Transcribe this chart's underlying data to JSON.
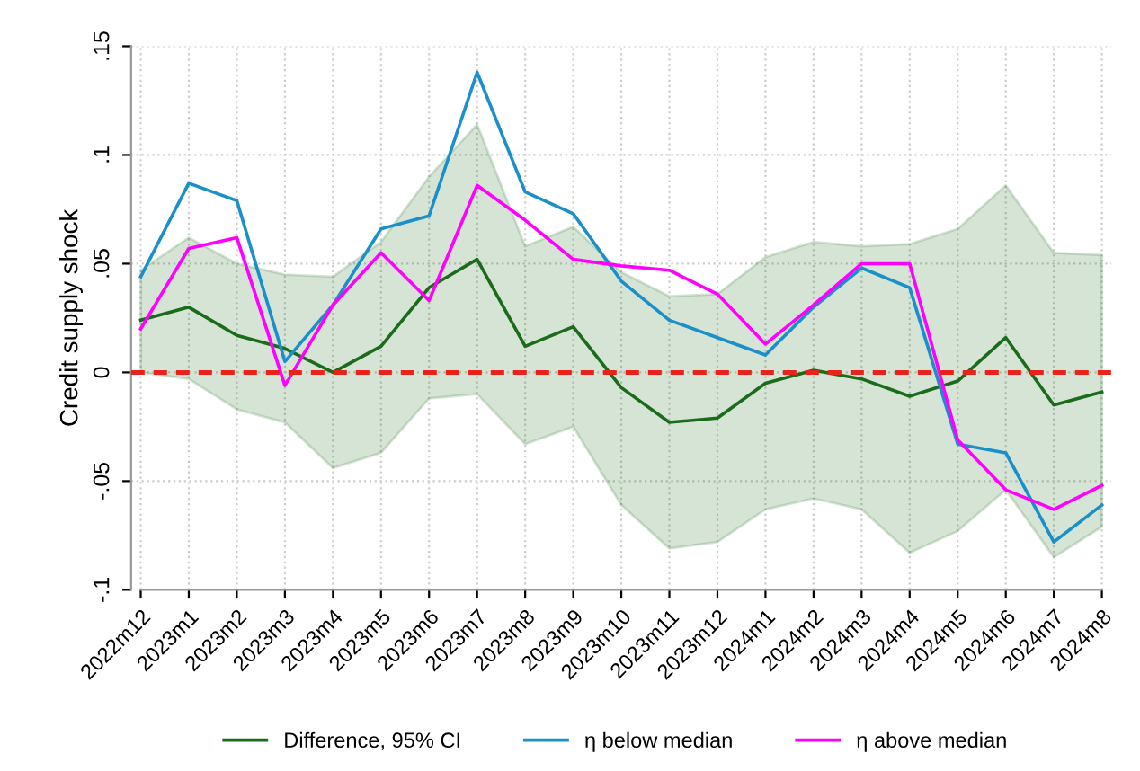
{
  "chart_data": {
    "type": "line",
    "ylabel": "Credit supply shock",
    "categories": [
      "2022m12",
      "2023m1",
      "2023m2",
      "2023m3",
      "2023m4",
      "2023m5",
      "2023m6",
      "2023m7",
      "2023m8",
      "2023m9",
      "2023m10",
      "2023m11",
      "2023m12",
      "2024m1",
      "2024m2",
      "2024m3",
      "2024m4",
      "2024m5",
      "2024m6",
      "2024m7",
      "2024m8"
    ],
    "series": [
      {
        "name": "Difference, 95% CI",
        "color": "#1a6b1a",
        "values": [
          0.024,
          0.03,
          0.017,
          0.011,
          0.0,
          0.012,
          0.039,
          0.052,
          0.012,
          0.021,
          -0.007,
          -0.023,
          -0.021,
          -0.005,
          0.001,
          -0.003,
          -0.011,
          -0.004,
          0.016,
          -0.015,
          -0.009
        ],
        "lower": [
          0.0,
          -0.003,
          -0.017,
          -0.023,
          -0.044,
          -0.037,
          -0.012,
          -0.01,
          -0.033,
          -0.025,
          -0.061,
          -0.081,
          -0.078,
          -0.063,
          -0.058,
          -0.063,
          -0.083,
          -0.073,
          -0.054,
          -0.085,
          -0.071
        ],
        "upper": [
          0.047,
          0.062,
          0.05,
          0.045,
          0.044,
          0.06,
          0.09,
          0.114,
          0.058,
          0.067,
          0.046,
          0.035,
          0.036,
          0.053,
          0.06,
          0.058,
          0.059,
          0.066,
          0.086,
          0.055,
          0.054
        ]
      },
      {
        "name": "η below median",
        "color": "#1a8fc9",
        "values": [
          0.044,
          0.087,
          0.079,
          0.005,
          0.031,
          0.066,
          0.072,
          0.138,
          0.083,
          0.073,
          0.042,
          0.024,
          0.016,
          0.008,
          0.03,
          0.048,
          0.039,
          -0.033,
          -0.037,
          -0.078,
          -0.061
        ]
      },
      {
        "name": "η above median",
        "color": "#ff00ff",
        "values": [
          0.02,
          0.057,
          0.062,
          -0.006,
          0.031,
          0.055,
          0.033,
          0.086,
          0.07,
          0.052,
          0.049,
          0.047,
          0.036,
          0.013,
          0.031,
          0.05,
          0.05,
          -0.031,
          -0.054,
          -0.063,
          -0.052
        ]
      }
    ],
    "ylim": [
      -0.1,
      0.15
    ],
    "yticks": [
      {
        "value": -0.1,
        "label": "-.1"
      },
      {
        "value": -0.05,
        "label": "-.05"
      },
      0,
      {
        "value": 0.05,
        "label": ".05"
      },
      {
        "value": 0.1,
        "label": ".1"
      },
      {
        "value": 0.15,
        "label": ".15"
      }
    ],
    "ref_lines": [
      {
        "axis": "y",
        "value": 0,
        "label": null,
        "color": "#e8231b",
        "line_style": "dashed"
      }
    ],
    "grid": true,
    "legend": "bottom",
    "marker": "none",
    "line_style": "solid"
  }
}
